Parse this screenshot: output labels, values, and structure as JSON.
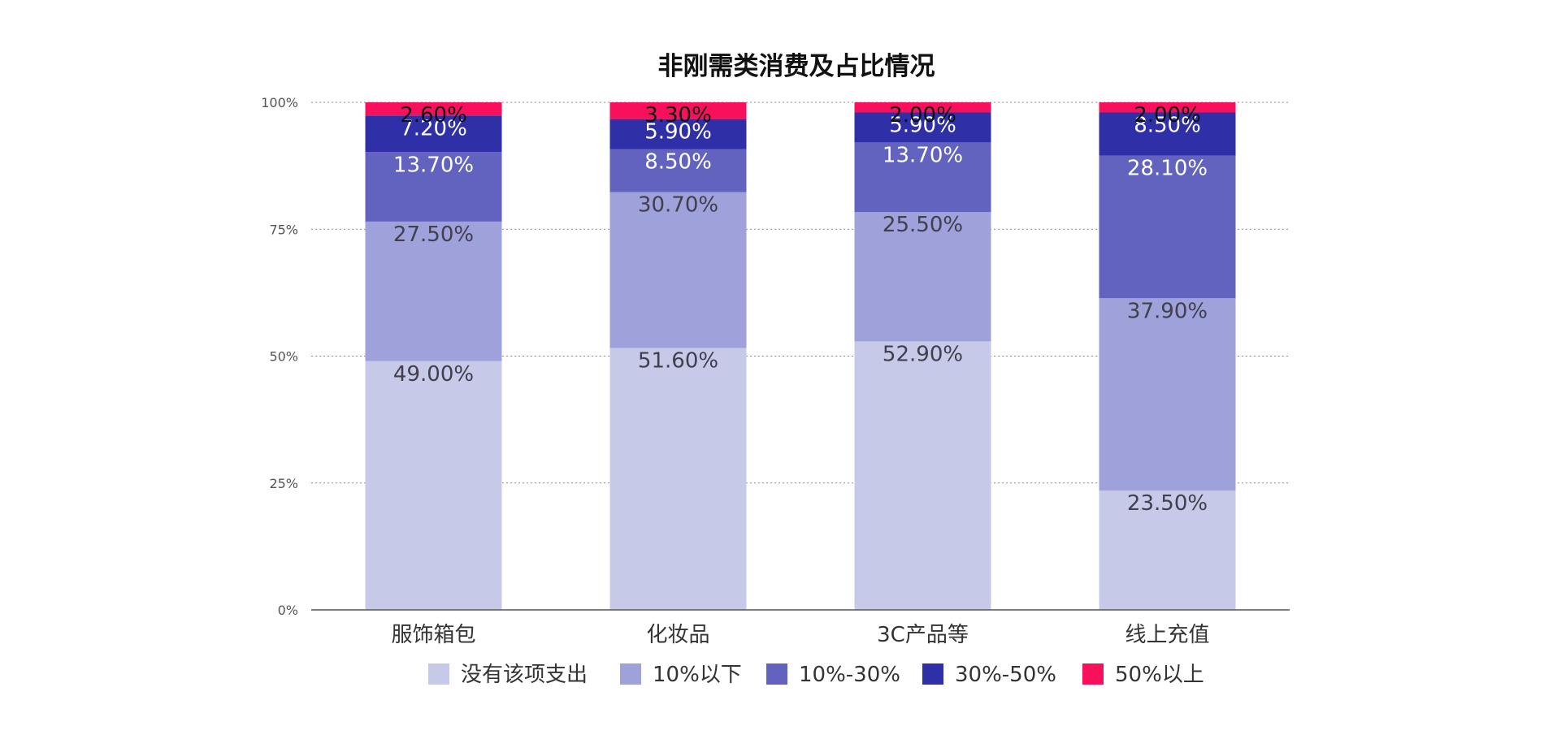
{
  "chart_data": {
    "type": "bar",
    "stacked": true,
    "title": "非刚需类消费及占比情况",
    "xlabel": "",
    "ylabel": "",
    "categories": [
      "服饰箱包",
      "化妆品",
      "3C产品等",
      "线上充值"
    ],
    "yticks": [
      "0%",
      "25%",
      "50%",
      "75%",
      "100%"
    ],
    "ylim": [
      0,
      100
    ],
    "grid": true,
    "legend_position": "bottom",
    "series": [
      {
        "name": "没有该项支出",
        "color": "#c7c9e9",
        "label_color": "#3f3f4f",
        "values": [
          49.0,
          51.6,
          52.9,
          23.5
        ],
        "labels": [
          "49.00%",
          "51.60%",
          "52.90%",
          "23.50%"
        ]
      },
      {
        "name": "10%以下",
        "color": "#9fa1da",
        "label_color": "#3f3f4f",
        "values": [
          27.5,
          30.7,
          25.5,
          37.9
        ],
        "labels": [
          "27.50%",
          "30.70%",
          "25.50%",
          "37.90%"
        ]
      },
      {
        "name": "10%-30%",
        "color": "#6163bf",
        "label_color": "#ffffff",
        "values": [
          13.7,
          8.5,
          13.7,
          28.1
        ],
        "labels": [
          "13.70%",
          "8.50%",
          "13.70%",
          "28.10%"
        ]
      },
      {
        "name": "30%-50%",
        "color": "#2f2fa7",
        "label_color": "#ffffff",
        "values": [
          7.2,
          5.9,
          5.9,
          8.5
        ],
        "labels": [
          "7.20%",
          "5.90%",
          "5.90%",
          "8.50%"
        ]
      },
      {
        "name": "50%以上",
        "color": "#f8105c",
        "label_color": "#111111",
        "values": [
          2.6,
          3.3,
          2.0,
          2.0
        ],
        "labels": [
          "2.60%",
          "3.30%",
          "2.00%",
          "2.00%"
        ]
      }
    ]
  }
}
